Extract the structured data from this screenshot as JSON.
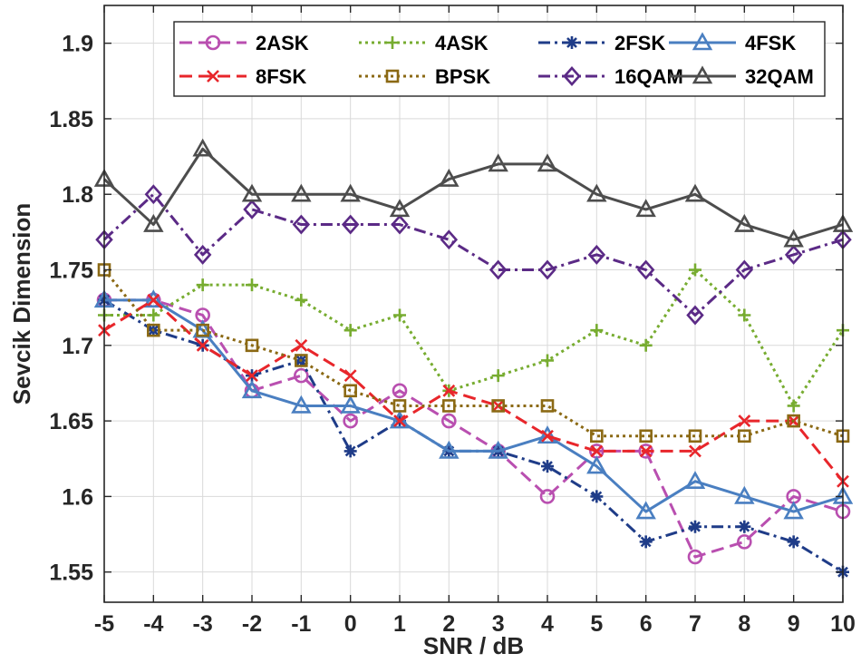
{
  "chart_data": {
    "type": "line",
    "title": "",
    "xlabel": "SNR / dB",
    "ylabel": "Sevcik Dimension",
    "x": [
      -5,
      -4,
      -3,
      -2,
      -1,
      0,
      1,
      2,
      3,
      4,
      5,
      6,
      7,
      8,
      9,
      10
    ],
    "x_tick_labels": [
      "-5",
      "-4",
      "-3",
      "-2",
      "-1",
      "0",
      "1",
      "2",
      "3",
      "4",
      "5",
      "6",
      "7",
      "8",
      "9",
      "10"
    ],
    "xlim": [
      -5,
      10
    ],
    "ylim": [
      1.53,
      1.925
    ],
    "y_ticks": [
      1.55,
      1.6,
      1.65,
      1.7,
      1.75,
      1.8,
      1.85,
      1.9
    ],
    "y_tick_labels": [
      "1.55",
      "1.6",
      "1.65",
      "1.7",
      "1.75",
      "1.8",
      "1.85",
      "1.9"
    ],
    "grid": true,
    "legend_position": "top-right",
    "series": [
      {
        "name": "2ASK",
        "color": "#B94FB0",
        "dash": "dashed",
        "marker": "circle",
        "values": [
          1.73,
          1.73,
          1.72,
          1.67,
          1.68,
          1.65,
          1.67,
          1.65,
          1.63,
          1.6,
          1.63,
          1.63,
          1.56,
          1.57,
          1.6,
          1.59
        ]
      },
      {
        "name": "4ASK",
        "color": "#77AC30",
        "dash": "dotted",
        "marker": "plus",
        "values": [
          1.72,
          1.72,
          1.74,
          1.74,
          1.73,
          1.71,
          1.72,
          1.67,
          1.68,
          1.69,
          1.71,
          1.7,
          1.75,
          1.72,
          1.66,
          1.71
        ]
      },
      {
        "name": "2FSK",
        "color": "#1F3C88",
        "dash": "dashdot",
        "marker": "star",
        "values": [
          1.73,
          1.71,
          1.7,
          1.68,
          1.69,
          1.63,
          1.65,
          1.63,
          1.63,
          1.62,
          1.6,
          1.57,
          1.58,
          1.58,
          1.57,
          1.55
        ]
      },
      {
        "name": "4FSK",
        "color": "#4A7FC1",
        "dash": "solid",
        "marker": "triangle",
        "values": [
          1.73,
          1.73,
          1.71,
          1.67,
          1.66,
          1.66,
          1.65,
          1.63,
          1.63,
          1.64,
          1.62,
          1.59,
          1.61,
          1.6,
          1.59,
          1.6
        ]
      },
      {
        "name": "8FSK",
        "color": "#E8262B",
        "dash": "dashed",
        "marker": "x",
        "values": [
          1.71,
          1.73,
          1.7,
          1.68,
          1.7,
          1.68,
          1.65,
          1.67,
          1.66,
          1.64,
          1.63,
          1.63,
          1.63,
          1.65,
          1.65,
          1.61
        ]
      },
      {
        "name": "BPSK",
        "color": "#8B6914",
        "dash": "dotted",
        "marker": "square",
        "values": [
          1.75,
          1.71,
          1.71,
          1.7,
          1.69,
          1.67,
          1.66,
          1.66,
          1.66,
          1.66,
          1.64,
          1.64,
          1.64,
          1.64,
          1.65,
          1.64
        ]
      },
      {
        "name": "16QAM",
        "color": "#5B2A86",
        "dash": "dashdot",
        "marker": "diamond",
        "values": [
          1.77,
          1.8,
          1.76,
          1.79,
          1.78,
          1.78,
          1.78,
          1.77,
          1.75,
          1.75,
          1.76,
          1.75,
          1.72,
          1.75,
          1.76,
          1.77
        ]
      },
      {
        "name": "32QAM",
        "color": "#4D4D4D",
        "dash": "solid",
        "marker": "triangle",
        "values": [
          1.81,
          1.78,
          1.83,
          1.8,
          1.8,
          1.8,
          1.79,
          1.81,
          1.82,
          1.82,
          1.8,
          1.79,
          1.8,
          1.78,
          1.77,
          1.78
        ]
      }
    ]
  }
}
